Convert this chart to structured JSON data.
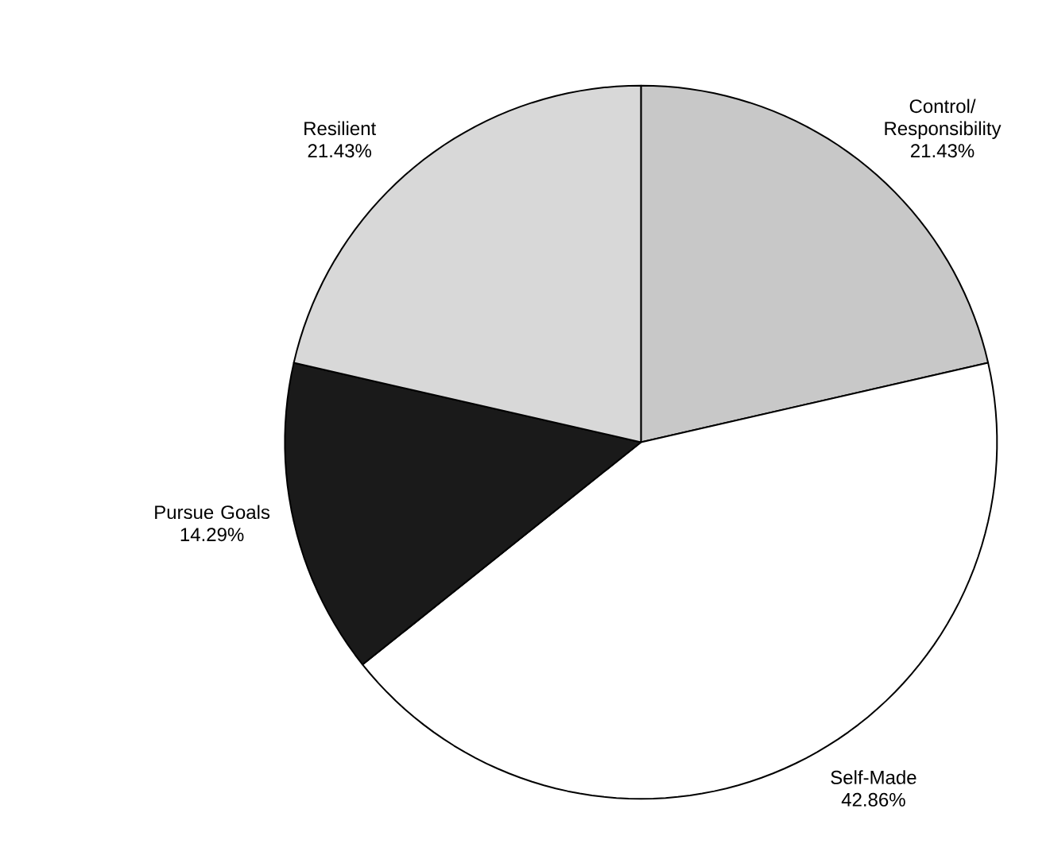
{
  "chart_data": {
    "type": "pie",
    "categories": [
      "Control/ Responsibility",
      "Self-Made",
      "Pursue Goals",
      "Resilient"
    ],
    "values": [
      21.43,
      42.86,
      14.29,
      21.43
    ],
    "value_labels": [
      "21.43%",
      "42.86%",
      "14.29%",
      "21.43%"
    ],
    "colors": [
      "#c8c8c8",
      "#ffffff",
      "#1a1a1a",
      "#d8d8d8"
    ]
  }
}
